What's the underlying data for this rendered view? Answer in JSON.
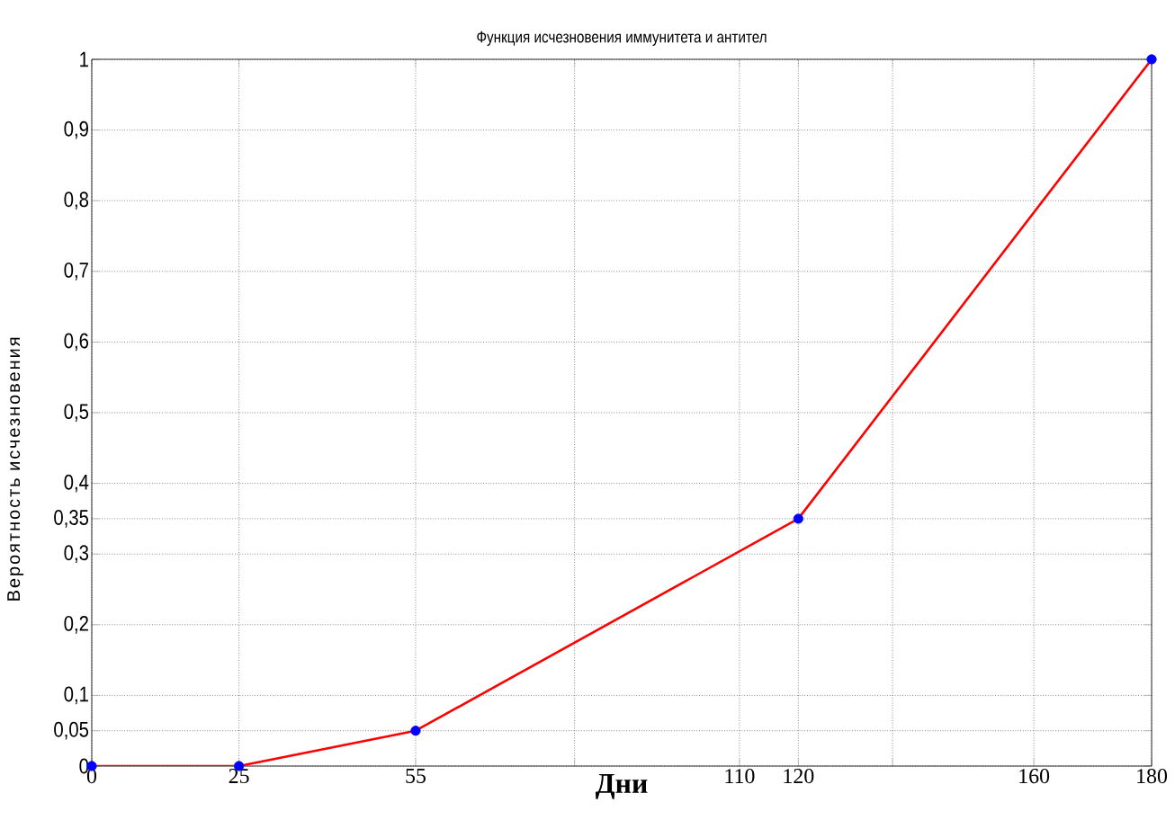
{
  "chart_data": {
    "type": "line",
    "title": "Функция исчезновения иммунитета и антител",
    "xlabel": "Дни",
    "ylabel": "Вероятность исчезновения",
    "x": [
      0,
      25,
      55,
      120,
      180
    ],
    "series": [
      {
        "color": "#ff0000",
        "colors": [
          "#0000ff",
          "#0000ff",
          "#0000ff",
          "#0000ff",
          "#0000ff"
        ],
        "values": [
          0,
          0,
          0.05,
          0.35,
          1
        ]
      }
    ],
    "marker": "circle",
    "grid": true,
    "xlim": [
      0,
      180
    ],
    "ylim": [
      0,
      1
    ],
    "xticks": [
      0,
      25,
      55,
      {
        "value": 82,
        "label": null
      },
      110,
      120,
      {
        "value": 136,
        "label": null
      },
      160,
      180
    ],
    "yticks": [
      0,
      {
        "value": 0.05,
        "label": "0,05"
      },
      {
        "value": 0.1,
        "label": "0,1"
      },
      {
        "value": 0.2,
        "label": "0,2"
      },
      {
        "value": 0.3,
        "label": "0,3"
      },
      {
        "value": 0.35,
        "label": "0,35"
      },
      {
        "value": 0.4,
        "label": "0,4"
      },
      {
        "value": 0.5,
        "label": "0,5"
      },
      {
        "value": 0.6,
        "label": "0,6"
      },
      {
        "value": 0.7,
        "label": "0,7"
      },
      {
        "value": 0.8,
        "label": "0,8"
      },
      {
        "value": 0.9,
        "label": "0,9"
      },
      1
    ]
  }
}
